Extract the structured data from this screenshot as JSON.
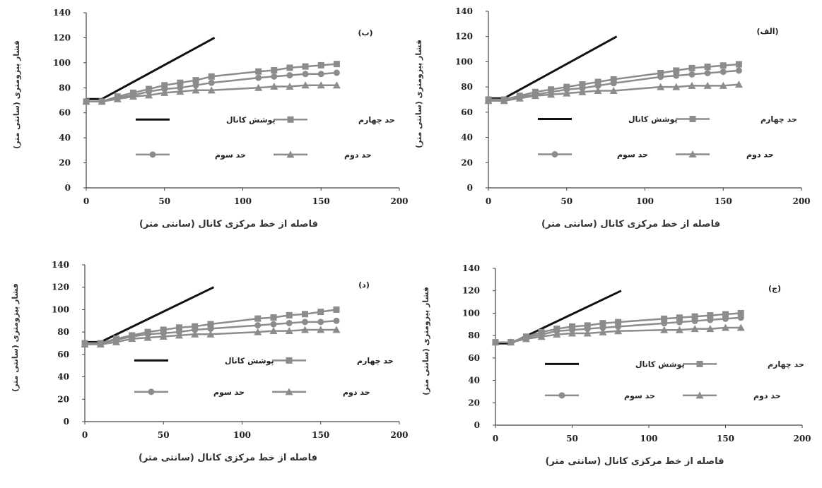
{
  "chart_data": [
    {
      "type": "line",
      "title": "(ب)",
      "xlabel": "فاصله از خط مرکزی کانال (سانتی متر)",
      "ylabel": "فشار پیزومتری (سانتی متر)",
      "xlim": [
        0,
        200
      ],
      "ylim": [
        0,
        140
      ],
      "xticks": [
        "0",
        "50",
        "100",
        "150",
        "200"
      ],
      "yticks": [
        "0",
        "20",
        "40",
        "60",
        "80",
        "100",
        "120",
        "140"
      ],
      "series": [
        {
          "name": "پوشش کانال",
          "marker": "none",
          "color": "#111111",
          "points": [
            [
              0,
              71
            ],
            [
              10,
              71
            ],
            [
              82,
              120
            ]
          ]
        },
        {
          "name": "حد چهارم",
          "marker": "square",
          "color": "#8c8c8c",
          "points": [
            [
              0,
              69
            ],
            [
              10,
              69
            ],
            [
              20,
              73
            ],
            [
              30,
              76
            ],
            [
              40,
              79
            ],
            [
              50,
              82
            ],
            [
              60,
              84
            ],
            [
              70,
              86
            ],
            [
              80,
              89
            ],
            [
              110,
              93
            ],
            [
              120,
              94
            ],
            [
              130,
              96
            ],
            [
              140,
              97
            ],
            [
              150,
              98
            ],
            [
              160,
              99
            ]
          ]
        },
        {
          "name": "حد سوم",
          "marker": "circle",
          "color": "#8c8c8c",
          "points": [
            [
              0,
              69
            ],
            [
              10,
              69
            ],
            [
              20,
              72
            ],
            [
              30,
              74
            ],
            [
              40,
              77
            ],
            [
              50,
              79
            ],
            [
              60,
              80
            ],
            [
              70,
              82
            ],
            [
              80,
              84
            ],
            [
              110,
              88
            ],
            [
              120,
              89
            ],
            [
              130,
              90
            ],
            [
              140,
              91
            ],
            [
              150,
              91
            ],
            [
              160,
              92
            ]
          ]
        },
        {
          "name": "حد دوم",
          "marker": "triangle",
          "color": "#8c8c8c",
          "points": [
            [
              0,
              69
            ],
            [
              10,
              69
            ],
            [
              20,
              71
            ],
            [
              30,
              73
            ],
            [
              40,
              74
            ],
            [
              50,
              76
            ],
            [
              60,
              77
            ],
            [
              70,
              78
            ],
            [
              80,
              78
            ],
            [
              110,
              80
            ],
            [
              120,
              81
            ],
            [
              130,
              81
            ],
            [
              140,
              82
            ],
            [
              150,
              82
            ],
            [
              160,
              82
            ]
          ]
        }
      ],
      "legend": {
        "channel": "پوشش کانال",
        "fourth": "حد چهارم",
        "third": "حد سوم",
        "second": "حد دوم"
      }
    },
    {
      "type": "line",
      "title": "(الف)",
      "xlabel": "فاصله از خط مرکزی کانال (سانتی متر)",
      "ylabel": "فشار پیزومتری (سانتی متر)",
      "xlim": [
        0,
        200
      ],
      "ylim": [
        0,
        140
      ],
      "xticks": [
        "0",
        "50",
        "100",
        "150",
        "200"
      ],
      "yticks": [
        "0",
        "20",
        "40",
        "60",
        "80",
        "100",
        "120",
        "140"
      ],
      "series": [
        {
          "name": "پوشش کانال",
          "marker": "none",
          "color": "#111111",
          "points": [
            [
              0,
              71
            ],
            [
              10,
              71
            ],
            [
              82,
              120
            ]
          ]
        },
        {
          "name": "حد چهارم",
          "marker": "square",
          "color": "#8c8c8c",
          "points": [
            [
              0,
              70
            ],
            [
              10,
              70
            ],
            [
              20,
              73
            ],
            [
              30,
              76
            ],
            [
              40,
              78
            ],
            [
              50,
              80
            ],
            [
              60,
              82
            ],
            [
              70,
              84
            ],
            [
              80,
              86
            ],
            [
              110,
              91
            ],
            [
              120,
              93
            ],
            [
              130,
              95
            ],
            [
              140,
              96
            ],
            [
              150,
              97
            ],
            [
              160,
              98
            ]
          ]
        },
        {
          "name": "حد سوم",
          "marker": "circle",
          "color": "#8c8c8c",
          "points": [
            [
              0,
              70
            ],
            [
              10,
              70
            ],
            [
              20,
              72
            ],
            [
              30,
              74
            ],
            [
              40,
              76
            ],
            [
              50,
              78
            ],
            [
              60,
              79
            ],
            [
              70,
              81
            ],
            [
              80,
              83
            ],
            [
              110,
              88
            ],
            [
              120,
              89
            ],
            [
              130,
              90
            ],
            [
              140,
              91
            ],
            [
              150,
              92
            ],
            [
              160,
              93
            ]
          ]
        },
        {
          "name": "حد دوم",
          "marker": "triangle",
          "color": "#8c8c8c",
          "points": [
            [
              0,
              69
            ],
            [
              10,
              69
            ],
            [
              20,
              71
            ],
            [
              30,
              73
            ],
            [
              40,
              74
            ],
            [
              50,
              75
            ],
            [
              60,
              76
            ],
            [
              70,
              77
            ],
            [
              80,
              77
            ],
            [
              110,
              80
            ],
            [
              120,
              80
            ],
            [
              130,
              81
            ],
            [
              140,
              81
            ],
            [
              150,
              81
            ],
            [
              160,
              82
            ]
          ]
        }
      ],
      "legend": {
        "channel": "پوشش کانال",
        "fourth": "حد چهارم",
        "third": "حد سوم",
        "second": "حد دوم"
      }
    },
    {
      "type": "line",
      "title": "(د)",
      "xlabel": "فاصله از خط مرکزی کانال (سانتی متر)",
      "ylabel": "فشار پیزومتری (سانتی متر)",
      "xlim": [
        0,
        200
      ],
      "ylim": [
        0,
        140
      ],
      "xticks": [
        "0",
        "50",
        "100",
        "150",
        "200"
      ],
      "yticks": [
        "0",
        "20",
        "40",
        "60",
        "80",
        "100",
        "120",
        "140"
      ],
      "series": [
        {
          "name": "پوشش کانال",
          "marker": "none",
          "color": "#111111",
          "points": [
            [
              0,
              71
            ],
            [
              10,
              71
            ],
            [
              82,
              120
            ]
          ]
        },
        {
          "name": "حد چهارم",
          "marker": "square",
          "color": "#8c8c8c",
          "points": [
            [
              0,
              70
            ],
            [
              10,
              70
            ],
            [
              20,
              74
            ],
            [
              30,
              77
            ],
            [
              40,
              80
            ],
            [
              50,
              82
            ],
            [
              60,
              84
            ],
            [
              70,
              85
            ],
            [
              80,
              87
            ],
            [
              110,
              92
            ],
            [
              120,
              93
            ],
            [
              130,
              95
            ],
            [
              140,
              96
            ],
            [
              150,
              98
            ],
            [
              160,
              100
            ]
          ]
        },
        {
          "name": "حد سوم",
          "marker": "circle",
          "color": "#8c8c8c",
          "points": [
            [
              0,
              70
            ],
            [
              10,
              70
            ],
            [
              20,
              73
            ],
            [
              30,
              76
            ],
            [
              40,
              78
            ],
            [
              50,
              79
            ],
            [
              60,
              80
            ],
            [
              70,
              82
            ],
            [
              80,
              83
            ],
            [
              110,
              86
            ],
            [
              120,
              87
            ],
            [
              130,
              88
            ],
            [
              140,
              89
            ],
            [
              150,
              89
            ],
            [
              160,
              90
            ]
          ]
        },
        {
          "name": "حد دوم",
          "marker": "triangle",
          "color": "#8c8c8c",
          "points": [
            [
              0,
              69
            ],
            [
              10,
              69
            ],
            [
              20,
              71
            ],
            [
              30,
              74
            ],
            [
              40,
              75
            ],
            [
              50,
              76
            ],
            [
              60,
              77
            ],
            [
              70,
              78
            ],
            [
              80,
              78
            ],
            [
              110,
              80
            ],
            [
              120,
              81
            ],
            [
              130,
              81
            ],
            [
              140,
              82
            ],
            [
              150,
              82
            ],
            [
              160,
              82
            ]
          ]
        }
      ],
      "legend": {
        "channel": "پوشش کانال",
        "fourth": "حد چهارم",
        "third": "حد سوم",
        "second": "حد دوم"
      }
    },
    {
      "type": "line",
      "title": "(ج)",
      "xlabel": "فاصله از خط مرکزی کانال (سانتی متر)",
      "ylabel": "فشار پیزومتری (سانتی متر)",
      "xlim": [
        0,
        200
      ],
      "ylim": [
        0,
        140
      ],
      "xticks": [
        "0",
        "50",
        "100",
        "150",
        "200"
      ],
      "yticks": [
        "0",
        "20",
        "40",
        "60",
        "80",
        "100",
        "120",
        "140"
      ],
      "series": [
        {
          "name": "پوشش کانال",
          "marker": "none",
          "color": "#111111",
          "points": [
            [
              0,
              73
            ],
            [
              10,
              73
            ],
            [
              82,
              120
            ]
          ]
        },
        {
          "name": "حد چهارم",
          "marker": "square",
          "color": "#8c8c8c",
          "points": [
            [
              0,
              74
            ],
            [
              10,
              74
            ],
            [
              20,
              79
            ],
            [
              30,
              83
            ],
            [
              40,
              86
            ],
            [
              50,
              88
            ],
            [
              60,
              89
            ],
            [
              70,
              91
            ],
            [
              80,
              92
            ],
            [
              110,
              95
            ],
            [
              120,
              96
            ],
            [
              130,
              97
            ],
            [
              140,
              98
            ],
            [
              150,
              99
            ],
            [
              160,
              100
            ]
          ]
        },
        {
          "name": "حد سوم",
          "marker": "circle",
          "color": "#8c8c8c",
          "points": [
            [
              0,
              74
            ],
            [
              10,
              74
            ],
            [
              20,
              78
            ],
            [
              30,
              81
            ],
            [
              40,
              84
            ],
            [
              50,
              85
            ],
            [
              60,
              86
            ],
            [
              70,
              87
            ],
            [
              80,
              88
            ],
            [
              110,
              91
            ],
            [
              120,
              92
            ],
            [
              130,
              93
            ],
            [
              140,
              94
            ],
            [
              150,
              95
            ],
            [
              160,
              96
            ]
          ]
        },
        {
          "name": "حد دوم",
          "marker": "triangle",
          "color": "#8c8c8c",
          "points": [
            [
              0,
              74
            ],
            [
              10,
              74
            ],
            [
              20,
              77
            ],
            [
              30,
              79
            ],
            [
              40,
              81
            ],
            [
              50,
              82
            ],
            [
              60,
              82
            ],
            [
              70,
              83
            ],
            [
              80,
              84
            ],
            [
              110,
              85
            ],
            [
              120,
              85
            ],
            [
              130,
              86
            ],
            [
              140,
              86
            ],
            [
              150,
              87
            ],
            [
              160,
              87
            ]
          ]
        }
      ],
      "legend": {
        "channel": "پوشش کانال",
        "fourth": "حد چهارم",
        "third": "حد سوم",
        "second": "حد دوم"
      }
    }
  ]
}
